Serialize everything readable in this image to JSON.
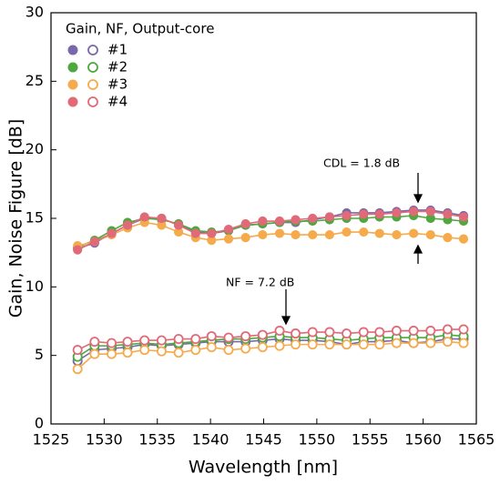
{
  "chart_data": {
    "type": "line",
    "xlabel": "Wavelength [nm]",
    "ylabel": "Gain, Noise Figure [dB]",
    "legend_title": "Gain, NF, Output-core",
    "legend": "upper left",
    "annotations": [
      "CDL = 1.8 dB",
      "NF = 7.2 dB"
    ],
    "xlim": [
      1525,
      1565
    ],
    "xticks": [
      1525,
      1530,
      1535,
      1540,
      1545,
      1550,
      1555,
      1560,
      1565
    ],
    "ylim": [
      0,
      30
    ],
    "yticks": [
      0,
      5,
      10,
      15,
      20,
      25,
      30
    ],
    "x": [
      1527.5,
      1529.1,
      1530.7,
      1532.2,
      1533.8,
      1535.4,
      1537,
      1538.6,
      1540.1,
      1541.7,
      1543.3,
      1544.9,
      1546.5,
      1548,
      1549.6,
      1551.2,
      1552.8,
      1554.4,
      1555.9,
      1557.5,
      1559.1,
      1560.7,
      1562.3,
      1563.8
    ],
    "series": [
      {
        "name": "#1",
        "color": "#7b68a8",
        "gain": [
          12.8,
          13.2,
          13.9,
          14.5,
          15.0,
          15.0,
          14.5,
          14.0,
          13.9,
          14.1,
          14.5,
          14.6,
          14.7,
          14.7,
          14.9,
          15.1,
          15.4,
          15.4,
          15.4,
          15.5,
          15.6,
          15.6,
          15.4,
          15.2
        ],
        "nf": [
          4.6,
          5.4,
          5.5,
          5.6,
          5.8,
          5.7,
          5.8,
          5.9,
          6.0,
          6.0,
          6.0,
          6.1,
          6.2,
          6.1,
          6.1,
          6.0,
          5.8,
          6.0,
          6.0,
          6.1,
          5.9,
          6.0,
          6.2,
          6.2
        ]
      },
      {
        "name": "#2",
        "color": "#4ea83e",
        "gain": [
          12.9,
          13.4,
          14.1,
          14.7,
          15.0,
          14.9,
          14.6,
          14.1,
          14.0,
          14.1,
          14.5,
          14.6,
          14.7,
          14.8,
          14.8,
          14.9,
          15.0,
          15.0,
          15.1,
          15.1,
          15.2,
          15.0,
          14.9,
          14.8
        ],
        "nf": [
          4.9,
          5.7,
          5.7,
          5.8,
          5.9,
          5.8,
          5.9,
          6.0,
          6.1,
          6.2,
          6.2,
          6.3,
          6.4,
          6.3,
          6.3,
          6.2,
          6.1,
          6.2,
          6.3,
          6.3,
          6.3,
          6.3,
          6.5,
          6.4
        ]
      },
      {
        "name": "#3",
        "color": "#f5aa4c",
        "gain": [
          13.0,
          13.3,
          13.8,
          14.3,
          14.7,
          14.5,
          14.0,
          13.6,
          13.4,
          13.5,
          13.6,
          13.8,
          13.9,
          13.8,
          13.8,
          13.8,
          14.0,
          14.0,
          13.9,
          13.8,
          13.9,
          13.8,
          13.6,
          13.5
        ],
        "nf": [
          4.0,
          5.1,
          5.1,
          5.2,
          5.4,
          5.3,
          5.2,
          5.4,
          5.6,
          5.4,
          5.5,
          5.6,
          5.7,
          5.8,
          5.8,
          5.8,
          5.8,
          5.8,
          5.8,
          5.9,
          5.9,
          5.9,
          6.0,
          5.9
        ]
      },
      {
        "name": "#4",
        "color": "#e06a78",
        "gain": [
          12.7,
          13.3,
          13.9,
          14.5,
          15.1,
          15.0,
          14.5,
          13.9,
          13.9,
          14.2,
          14.6,
          14.8,
          14.8,
          14.9,
          15.0,
          15.1,
          15.2,
          15.3,
          15.3,
          15.4,
          15.5,
          15.5,
          15.3,
          15.1
        ],
        "nf": [
          5.4,
          6.0,
          5.9,
          6.0,
          6.1,
          6.1,
          6.2,
          6.2,
          6.4,
          6.3,
          6.4,
          6.5,
          6.8,
          6.6,
          6.7,
          6.7,
          6.6,
          6.7,
          6.7,
          6.8,
          6.8,
          6.8,
          6.9,
          6.9
        ]
      }
    ]
  }
}
